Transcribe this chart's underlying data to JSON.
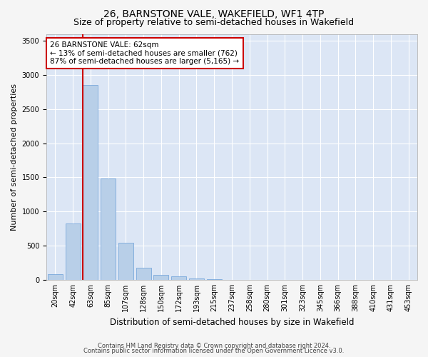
{
  "title1": "26, BARNSTONE VALE, WAKEFIELD, WF1 4TP",
  "title2": "Size of property relative to semi-detached houses in Wakefield",
  "xlabel": "Distribution of semi-detached houses by size in Wakefield",
  "ylabel": "Number of semi-detached properties",
  "footnote1": "Contains HM Land Registry data © Crown copyright and database right 2024.",
  "footnote2": "Contains public sector information licensed under the Open Government Licence v3.0.",
  "categories": [
    "20sqm",
    "42sqm",
    "63sqm",
    "85sqm",
    "107sqm",
    "128sqm",
    "150sqm",
    "172sqm",
    "193sqm",
    "215sqm",
    "237sqm",
    "258sqm",
    "280sqm",
    "301sqm",
    "323sqm",
    "345sqm",
    "366sqm",
    "388sqm",
    "410sqm",
    "431sqm",
    "453sqm"
  ],
  "values": [
    80,
    820,
    2850,
    1480,
    540,
    180,
    75,
    50,
    25,
    8,
    4,
    2,
    1,
    0,
    0,
    0,
    0,
    0,
    0,
    0,
    0
  ],
  "bar_color": "#b8cfe8",
  "bar_edge_color": "#6a9fd8",
  "property_line_x": 2,
  "property_line_label": "26 BARNSTONE VALE: 62sqm",
  "annotation_line1": "← 13% of semi-detached houses are smaller (762)",
  "annotation_line2": "87% of semi-detached houses are larger (5,165) →",
  "annotation_box_facecolor": "#ffffff",
  "annotation_box_edgecolor": "#cc0000",
  "vline_color": "#cc0000",
  "ylim": [
    0,
    3600
  ],
  "ytick_interval": 500,
  "plot_bg_color": "#dce6f5",
  "grid_color": "#ffffff",
  "fig_bg_color": "#f5f5f5",
  "title1_fontsize": 10,
  "title2_fontsize": 9,
  "ylabel_fontsize": 8,
  "xlabel_fontsize": 8.5,
  "tick_fontsize": 7,
  "annot_fontsize": 7.5,
  "footnote_fontsize": 6
}
